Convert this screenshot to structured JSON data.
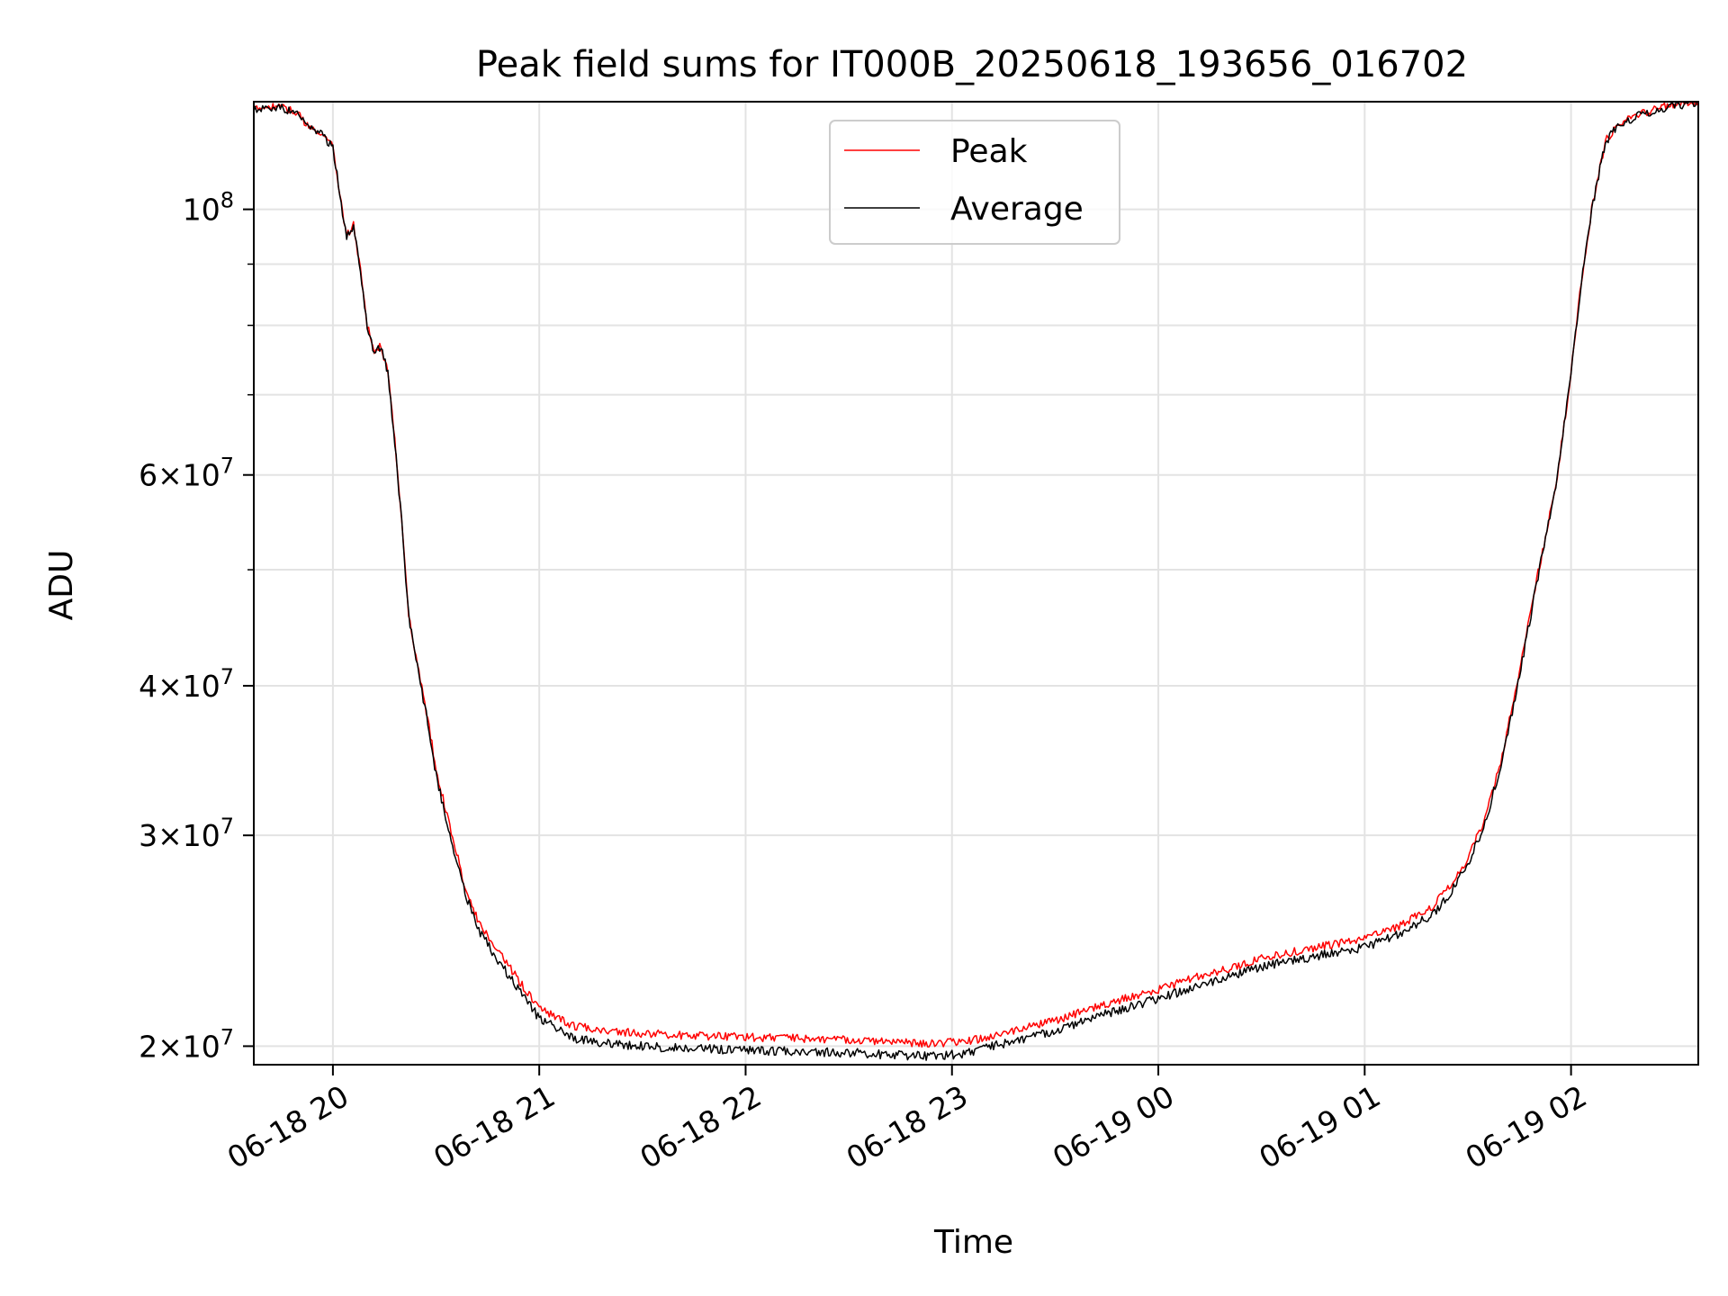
{
  "chart_data": {
    "type": "line",
    "title": "Peak field sums for IT000B_20250618_193656_016702",
    "xlabel": "Time",
    "ylabel": "ADU",
    "yscale": "log",
    "ylim": [
      19300000,
      123000000
    ],
    "xlim": [
      "2025-06-18 19:37",
      "2025-06-19 02:37"
    ],
    "x_ticks": [
      {
        "value": "2025-06-18 20:00",
        "label": "06-18 20"
      },
      {
        "value": "2025-06-18 21:00",
        "label": "06-18 21"
      },
      {
        "value": "2025-06-18 22:00",
        "label": "06-18 22"
      },
      {
        "value": "2025-06-18 23:00",
        "label": "06-18 23"
      },
      {
        "value": "2025-06-19 00:00",
        "label": "06-19 00"
      },
      {
        "value": "2025-06-19 01:00",
        "label": "06-19 01"
      },
      {
        "value": "2025-06-19 02:00",
        "label": "06-19 02"
      }
    ],
    "y_ticks": [
      {
        "value": 20000000,
        "mantissa": "2",
        "exponent": "7"
      },
      {
        "value": 30000000,
        "mantissa": "3",
        "exponent": "7"
      },
      {
        "value": 40000000,
        "mantissa": "4",
        "exponent": "7"
      },
      {
        "value": 60000000,
        "mantissa": "6",
        "exponent": "7"
      },
      {
        "value": 100000000,
        "mantissa": "",
        "exponent": "8"
      }
    ],
    "y_minor_ticks": [
      50000000,
      70000000,
      80000000,
      90000000
    ],
    "grid": true,
    "legend_position": "top-center",
    "series": [
      {
        "name": "Peak",
        "color": "#ff0000",
        "x": [
          "2025-06-18 19:37",
          "2025-06-18 19:40",
          "2025-06-18 19:43",
          "2025-06-18 19:46",
          "2025-06-18 19:50",
          "2025-06-18 19:53",
          "2025-06-18 19:56",
          "2025-06-18 20:00",
          "2025-06-18 20:02",
          "2025-06-18 20:04",
          "2025-06-18 20:06",
          "2025-06-18 20:08",
          "2025-06-18 20:10",
          "2025-06-18 20:12",
          "2025-06-18 20:14",
          "2025-06-18 20:16",
          "2025-06-18 20:18",
          "2025-06-18 20:20",
          "2025-06-18 20:22",
          "2025-06-18 20:25",
          "2025-06-18 20:28",
          "2025-06-18 20:30",
          "2025-06-18 20:34",
          "2025-06-18 20:38",
          "2025-06-18 20:42",
          "2025-06-18 20:48",
          "2025-06-18 20:55",
          "2025-06-18 21:00",
          "2025-06-18 21:10",
          "2025-06-18 21:20",
          "2025-06-18 21:30",
          "2025-06-18 21:45",
          "2025-06-18 22:00",
          "2025-06-18 22:15",
          "2025-06-18 22:30",
          "2025-06-18 22:45",
          "2025-06-18 22:55",
          "2025-06-18 23:05",
          "2025-06-18 23:15",
          "2025-06-18 23:30",
          "2025-06-18 23:45",
          "2025-06-19 00:00",
          "2025-06-19 00:10",
          "2025-06-19 00:20",
          "2025-06-19 00:30",
          "2025-06-19 00:40",
          "2025-06-19 00:50",
          "2025-06-19 01:00",
          "2025-06-19 01:10",
          "2025-06-19 01:20",
          "2025-06-19 01:25",
          "2025-06-19 01:30",
          "2025-06-19 01:35",
          "2025-06-19 01:40",
          "2025-06-19 01:45",
          "2025-06-19 01:50",
          "2025-06-19 01:53",
          "2025-06-19 01:56",
          "2025-06-19 02:00",
          "2025-06-19 02:03",
          "2025-06-19 02:06",
          "2025-06-19 02:08",
          "2025-06-19 02:10",
          "2025-06-19 02:14",
          "2025-06-19 02:20",
          "2025-06-19 02:28",
          "2025-06-19 02:37"
        ],
        "values": [
          121000000,
          122000000,
          122000000,
          121500000,
          120000000,
          117000000,
          116000000,
          113000000,
          103000000,
          95000000,
          97000000,
          89000000,
          80000000,
          76000000,
          77000000,
          73000000,
          64000000,
          55000000,
          46000000,
          41000000,
          37000000,
          34000000,
          30500000,
          27500000,
          25500000,
          24000000,
          22500000,
          21500000,
          20800000,
          20600000,
          20500000,
          20400000,
          20350000,
          20300000,
          20250000,
          20150000,
          20100000,
          20200000,
          20500000,
          21000000,
          21700000,
          22300000,
          22800000,
          23200000,
          23700000,
          24000000,
          24300000,
          24600000,
          25200000,
          26200000,
          27300000,
          28700000,
          31000000,
          35000000,
          41000000,
          49000000,
          54000000,
          60000000,
          73000000,
          87000000,
          100000000,
          107000000,
          114000000,
          118000000,
          120000000,
          122000000,
          123000000
        ]
      },
      {
        "name": "Average",
        "color": "#000000",
        "x": [
          "2025-06-18 19:37",
          "2025-06-18 19:40",
          "2025-06-18 19:43",
          "2025-06-18 19:46",
          "2025-06-18 19:50",
          "2025-06-18 19:53",
          "2025-06-18 19:56",
          "2025-06-18 20:00",
          "2025-06-18 20:02",
          "2025-06-18 20:04",
          "2025-06-18 20:06",
          "2025-06-18 20:08",
          "2025-06-18 20:10",
          "2025-06-18 20:12",
          "2025-06-18 20:14",
          "2025-06-18 20:16",
          "2025-06-18 20:18",
          "2025-06-18 20:20",
          "2025-06-18 20:22",
          "2025-06-18 20:25",
          "2025-06-18 20:28",
          "2025-06-18 20:30",
          "2025-06-18 20:34",
          "2025-06-18 20:38",
          "2025-06-18 20:42",
          "2025-06-18 20:48",
          "2025-06-18 20:55",
          "2025-06-18 21:00",
          "2025-06-18 21:10",
          "2025-06-18 21:20",
          "2025-06-18 21:30",
          "2025-06-18 21:45",
          "2025-06-18 22:00",
          "2025-06-18 22:15",
          "2025-06-18 22:30",
          "2025-06-18 22:45",
          "2025-06-18 22:55",
          "2025-06-18 23:05",
          "2025-06-18 23:15",
          "2025-06-18 23:30",
          "2025-06-18 23:45",
          "2025-06-19 00:00",
          "2025-06-19 00:10",
          "2025-06-19 00:20",
          "2025-06-19 00:30",
          "2025-06-19 00:40",
          "2025-06-19 00:50",
          "2025-06-19 01:00",
          "2025-06-19 01:10",
          "2025-06-19 01:20",
          "2025-06-19 01:25",
          "2025-06-19 01:30",
          "2025-06-19 01:35",
          "2025-06-19 01:40",
          "2025-06-19 01:45",
          "2025-06-19 01:50",
          "2025-06-19 01:53",
          "2025-06-19 01:56",
          "2025-06-19 02:00",
          "2025-06-19 02:03",
          "2025-06-19 02:06",
          "2025-06-19 02:08",
          "2025-06-19 02:10",
          "2025-06-19 02:14",
          "2025-06-19 02:20",
          "2025-06-19 02:28",
          "2025-06-19 02:37"
        ],
        "values": [
          120800000,
          121800000,
          121800000,
          121300000,
          119800000,
          116800000,
          115800000,
          112800000,
          102800000,
          94800000,
          96800000,
          88800000,
          79800000,
          75800000,
          76800000,
          72800000,
          63800000,
          54800000,
          45800000,
          40800000,
          36800000,
          33700000,
          30100000,
          27100000,
          25100000,
          23600000,
          22100000,
          21100000,
          20300000,
          20100000,
          20000000,
          19900000,
          19850000,
          19800000,
          19750000,
          19650000,
          19600000,
          19750000,
          20100000,
          20600000,
          21300000,
          21900000,
          22400000,
          22800000,
          23300000,
          23600000,
          23900000,
          24200000,
          24800000,
          25800000,
          26900000,
          28400000,
          30700000,
          34700000,
          40700000,
          48700000,
          53800000,
          59800000,
          72800000,
          86800000,
          99800000,
          106800000,
          113800000,
          117800000,
          119800000,
          121800000,
          122800000
        ]
      }
    ]
  }
}
